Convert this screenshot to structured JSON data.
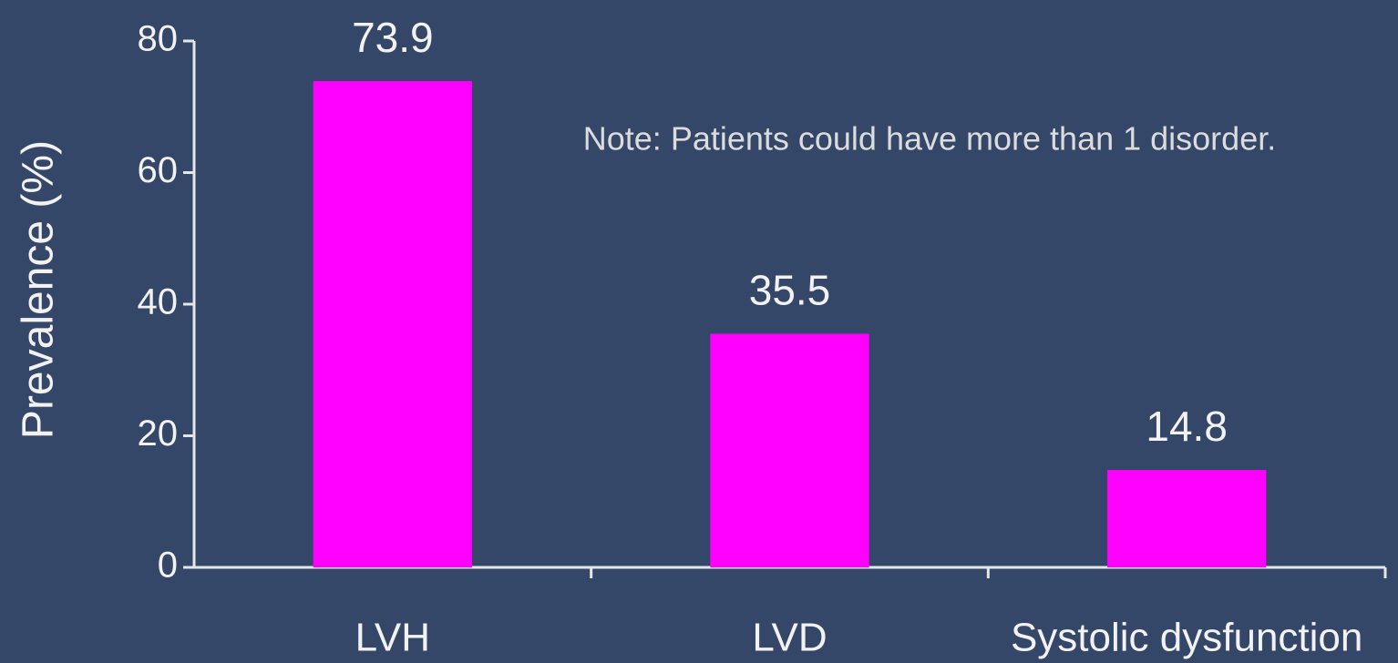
{
  "chart_data": {
    "type": "bar",
    "y_label": "Prevalence (%)",
    "annotation": "Note: Patients could have more than 1 disorder.",
    "categories": [
      "LVH",
      "LVD",
      "Systolic dysfunction"
    ],
    "values": [
      73.9,
      35.5,
      14.8
    ],
    "color": "#ff00ff",
    "ylim": [
      0,
      80
    ],
    "yticks": [
      0,
      20,
      40,
      60,
      80
    ],
    "grid": false
  }
}
